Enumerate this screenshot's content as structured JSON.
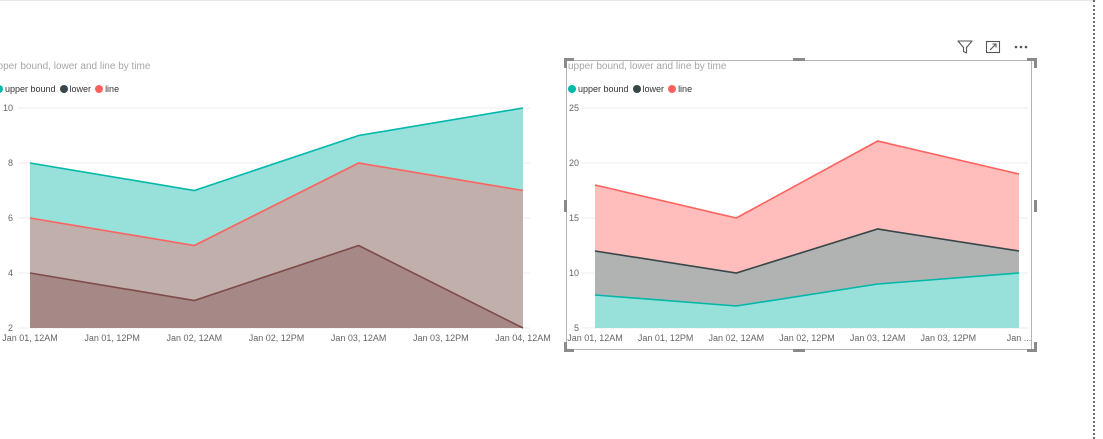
{
  "colors": {
    "upper_bound": "#01b8aa",
    "lower": "#374649",
    "line": "#fd625e",
    "upper_fill": "#97e1da",
    "line_fill": "#c1afab",
    "lower_fill": "#a68886",
    "lower_stroke": "#7d4b4a",
    "v2_line_fill": "#ffbebc",
    "v2_lower_fill": "#b1b3b3",
    "gridline": "#eeeeee"
  },
  "header_icons": [
    "filter-icon",
    "focus-mode-icon",
    "more-options-icon"
  ],
  "visuals": [
    {
      "title": "upper bound, lower and line by time",
      "legend": [
        "upper bound",
        "lower",
        "line"
      ],
      "chart_data": {
        "type": "area",
        "categories": [
          "Jan 01, 12AM",
          "Jan 02, 12AM",
          "Jan 03, 12AM",
          "Jan 04, 12AM"
        ],
        "x_tick_labels": [
          "Jan 01, 12AM",
          "Jan 01, 12PM",
          "Jan 02, 12AM",
          "Jan 02, 12PM",
          "Jan 03, 12AM",
          "Jan 03, 12PM",
          "Jan 04, 12AM"
        ],
        "series": [
          {
            "name": "upper bound",
            "values": [
              8,
              7,
              9,
              10
            ]
          },
          {
            "name": "lower",
            "values": [
              4,
              3,
              5,
              2
            ]
          },
          {
            "name": "line",
            "values": [
              6,
              5,
              8,
              7
            ]
          }
        ],
        "ylim": [
          2,
          10
        ],
        "y_ticks": [
          2,
          4,
          6,
          8,
          10
        ],
        "grid": true,
        "legend_position": "top-left"
      }
    },
    {
      "title": "upper bound, lower and line by time",
      "legend": [
        "upper bound",
        "lower",
        "line"
      ],
      "chart_data": {
        "type": "area",
        "categories": [
          "Jan 01, 12AM",
          "Jan 02, 12AM",
          "Jan 03, 12AM",
          "Jan 04, 12AM"
        ],
        "x_tick_labels": [
          "Jan 01, 12AM",
          "Jan 01, 12PM",
          "Jan 02, 12AM",
          "Jan 02, 12PM",
          "Jan 03, 12AM",
          "Jan 03, 12PM",
          "Jan ..."
        ],
        "series": [
          {
            "name": "upper bound",
            "values": [
              8,
              7,
              9,
              10
            ]
          },
          {
            "name": "lower",
            "values": [
              12,
              10,
              14,
              12
            ]
          },
          {
            "name": "line",
            "values": [
              18,
              15,
              22,
              19
            ]
          }
        ],
        "ylim": [
          5,
          25
        ],
        "y_ticks": [
          5,
          10,
          15,
          20,
          25
        ],
        "grid": true,
        "legend_position": "top-left"
      }
    }
  ]
}
